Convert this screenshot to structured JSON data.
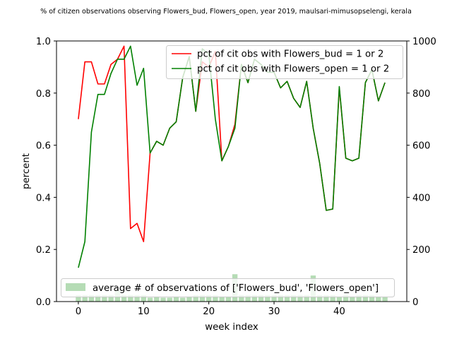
{
  "chart_data": {
    "type": "line",
    "title": "% of citizen observations observing Flowers_bud, Flowers_open, year 2019, maulsari-mimusopselengi, kerala",
    "xlabel": "week index",
    "ylabel": "percent",
    "xlim": [
      -3.35,
      50.35
    ],
    "ylim": [
      0,
      1
    ],
    "y2lim": [
      0,
      1000
    ],
    "xticks": [
      0,
      10,
      20,
      30,
      40
    ],
    "yticks": [
      0.0,
      0.2,
      0.4,
      0.6,
      0.8,
      1.0
    ],
    "y2ticks": [
      0,
      200,
      400,
      600,
      800,
      1000
    ],
    "grid": false,
    "legend_upper": "top-right",
    "legend_lower": "bottom",
    "x": [
      0,
      1,
      2,
      3,
      4,
      5,
      6,
      7,
      8,
      9,
      10,
      11,
      12,
      13,
      14,
      15,
      16,
      17,
      18,
      19,
      20,
      21,
      22,
      23,
      24,
      25,
      26,
      27,
      28,
      29,
      30,
      31,
      32,
      33,
      34,
      35,
      36,
      37,
      38,
      39,
      40,
      41,
      42,
      43,
      44,
      45,
      46,
      47
    ],
    "series": [
      {
        "name": "pct of cit obs with Flowers_bud = 1 or 2",
        "color": "#ff0000",
        "axis": "left",
        "values": [
          0.7,
          0.92,
          0.92,
          0.835,
          0.835,
          0.91,
          0.93,
          0.98,
          0.28,
          0.3,
          0.23,
          0.57,
          0.615,
          0.6,
          0.665,
          0.69,
          0.86,
          0.94,
          0.73,
          0.92,
          0.9,
          0.96,
          0.54,
          0.595,
          0.68,
          0.91,
          0.84,
          0.93,
          0.91,
          0.88,
          0.88,
          0.82,
          0.845,
          0.78,
          0.745,
          0.845,
          0.665,
          0.53,
          0.35,
          0.355,
          0.82,
          0.55,
          0.54,
          0.55,
          0.84,
          0.89,
          0.77,
          0.84
        ]
      },
      {
        "name": "pct of cit obs with Flowers_open = 1 or 2",
        "color": "#008000",
        "axis": "left",
        "values": [
          0.13,
          0.23,
          0.65,
          0.795,
          0.795,
          0.875,
          0.93,
          0.93,
          0.98,
          0.83,
          0.895,
          0.57,
          0.615,
          0.6,
          0.665,
          0.69,
          0.86,
          0.94,
          0.73,
          0.97,
          0.95,
          0.7,
          0.54,
          0.595,
          0.665,
          0.91,
          0.84,
          0.93,
          0.91,
          0.88,
          0.88,
          0.82,
          0.845,
          0.78,
          0.745,
          0.845,
          0.665,
          0.53,
          0.35,
          0.355,
          0.825,
          0.55,
          0.54,
          0.55,
          0.84,
          0.89,
          0.77,
          0.84
        ]
      },
      {
        "name": "average # of observations of ['Flowers_bud', 'Flowers_open']",
        "color": "#b5dcb5",
        "axis": "right",
        "type": "bar",
        "values": [
          25,
          25,
          25,
          25,
          25,
          25,
          45,
          25,
          25,
          25,
          25,
          15,
          20,
          15,
          15,
          20,
          15,
          20,
          25,
          25,
          25,
          25,
          20,
          20,
          105,
          25,
          25,
          25,
          25,
          25,
          25,
          25,
          25,
          25,
          25,
          25,
          100,
          25,
          25,
          25,
          20,
          25,
          20,
          25,
          25,
          25,
          20,
          20
        ]
      }
    ]
  }
}
